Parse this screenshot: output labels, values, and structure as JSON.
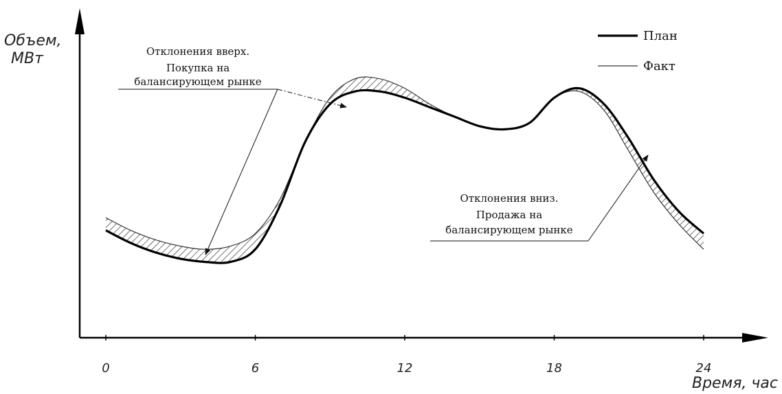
{
  "chart_data": {
    "type": "line",
    "xlabel": "Время, час",
    "ylabel_line1": "Объем,",
    "ylabel_line2": "МВт",
    "x_ticks": [
      0,
      6,
      12,
      18,
      24
    ],
    "x_tick_labels": [
      "0",
      "6",
      "12",
      "18",
      "24"
    ],
    "xlim": [
      0,
      24
    ],
    "ylim": [
      0,
      100
    ],
    "grid": false,
    "legend_position": "top-right",
    "series": [
      {
        "name": "План",
        "style": "thick",
        "x": [
          0,
          1,
          2,
          3,
          4,
          5,
          6,
          7,
          8,
          9,
          10,
          11,
          12,
          13,
          14,
          15,
          16,
          17,
          18,
          19,
          20,
          21,
          22,
          23,
          24
        ],
        "y": [
          34,
          30,
          27,
          25,
          24,
          24,
          28,
          42,
          62,
          74,
          78,
          78,
          76,
          73,
          70,
          67,
          66,
          68,
          76,
          79,
          74,
          63,
          50,
          40,
          33
        ]
      },
      {
        "name": "Факт",
        "style": "thin",
        "x": [
          0,
          1,
          2,
          3,
          4,
          5,
          6,
          7,
          8,
          9,
          10,
          11,
          12,
          13,
          14,
          15,
          16,
          17,
          18,
          19,
          20,
          21,
          22,
          23,
          24
        ],
        "y": [
          38,
          34,
          31,
          29,
          28,
          29,
          33,
          44,
          62,
          76,
          82,
          82,
          79,
          74,
          70,
          67,
          66,
          68,
          76,
          78,
          72,
          59,
          46,
          36,
          28
        ]
      }
    ],
    "annotations": [
      {
        "id": "up",
        "lines": [
          "Отклонения вверх.",
          "Покупка на",
          "балансирующем рынке"
        ],
        "targets_hours": [
          4,
          9.7
        ]
      },
      {
        "id": "down",
        "lines": [
          "Отклонения вниз.",
          "Продажа на",
          "балансирующем рынке"
        ],
        "targets_hours": [
          21.5
        ]
      }
    ]
  }
}
